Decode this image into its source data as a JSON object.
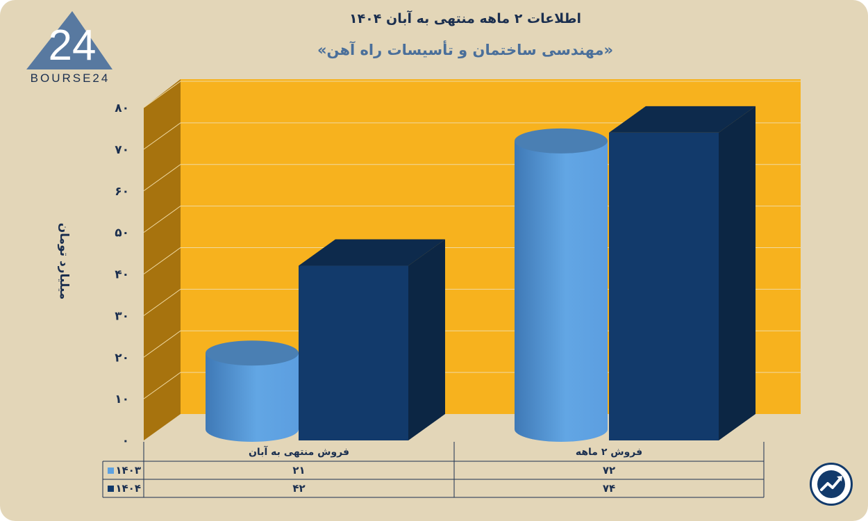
{
  "brand": {
    "logo_text": "BOURSE24",
    "logo_number": "24"
  },
  "title": "اطلاعات ۲ ماهه منتهی به آبان ۱۴۰۴",
  "subtitle": "«مهندسی ساختمان و تأسیسات راه آهن»",
  "colors": {
    "background": "#e3d6b8",
    "plot_back": "#f7b21e",
    "plot_side": "#a7730e",
    "series_1403": "#5ea2e0",
    "series_1404": "#123a6b",
    "text": "#1b2f4f"
  },
  "chart_data": {
    "type": "bar",
    "style": "3d-clustered",
    "categories": [
      "فروش منتهی به  آبان",
      "فروش ۲  ماهه"
    ],
    "series": [
      {
        "name": "۱۴۰۳",
        "shape": "cylinder",
        "values": [
          21,
          72
        ],
        "value_labels": [
          "۲۱",
          "۷۲"
        ]
      },
      {
        "name": "۱۴۰۴",
        "shape": "box",
        "values": [
          42,
          74
        ],
        "value_labels": [
          "۴۲",
          "۷۴"
        ]
      }
    ],
    "ylabel": "میلیارد تومان",
    "ylim": [
      0,
      80
    ],
    "yticks": [
      {
        "value": 0,
        "label": "۰"
      },
      {
        "value": 10,
        "label": "۱۰"
      },
      {
        "value": 20,
        "label": "۲۰"
      },
      {
        "value": 30,
        "label": "۳۰"
      },
      {
        "value": 40,
        "label": "۴۰"
      },
      {
        "value": 50,
        "label": "۵۰"
      },
      {
        "value": 60,
        "label": "۶۰"
      },
      {
        "value": 70,
        "label": "۷۰"
      },
      {
        "value": 80,
        "label": "۸۰"
      }
    ],
    "grid": true,
    "legend": "data-table-left"
  }
}
